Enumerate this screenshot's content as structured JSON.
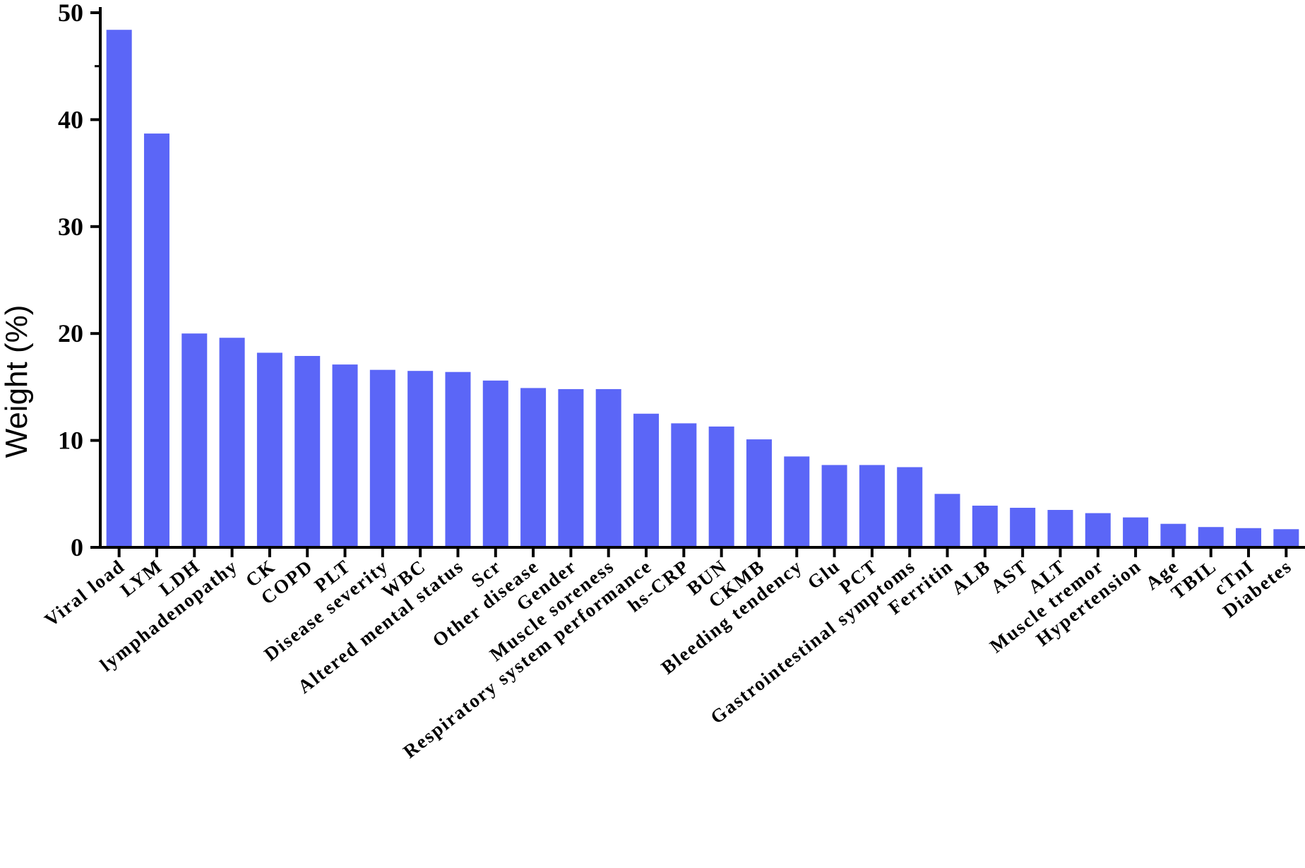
{
  "chart_data": {
    "type": "bar",
    "title": "",
    "xlabel": "",
    "ylabel": "Weight (%)",
    "ylim": [
      0,
      50
    ],
    "yticks": [
      0,
      10,
      20,
      30,
      40,
      50
    ],
    "grid": false,
    "bar_color": "#5b66f7",
    "categories": [
      "Viral load",
      "LYM",
      "LDH",
      "lymphadenopathy",
      "CK",
      "COPD",
      "PLT",
      "Disease severity",
      "WBC",
      "Altered mental status",
      "Scr",
      "Other disease",
      "Gender",
      "Muscle soreness",
      "Respiratory system performance",
      "hs-CRP",
      "BUN",
      "CKMB",
      "Bleeding tendency",
      "Glu",
      "PCT",
      "Gastrointestinal symptoms",
      "Ferritin",
      "ALB",
      "AST",
      "ALT",
      "Muscle tremor",
      "Hypertension",
      "Age",
      "TBIL",
      "cTnI",
      "Diabetes"
    ],
    "values": [
      48.4,
      38.7,
      20.0,
      19.6,
      18.2,
      17.9,
      17.1,
      16.6,
      16.5,
      16.4,
      15.6,
      14.9,
      14.8,
      14.8,
      12.5,
      11.6,
      11.3,
      10.1,
      8.5,
      7.7,
      7.7,
      7.5,
      5.0,
      3.9,
      3.7,
      3.5,
      3.2,
      2.8,
      2.2,
      1.9,
      1.8,
      1.7
    ]
  }
}
